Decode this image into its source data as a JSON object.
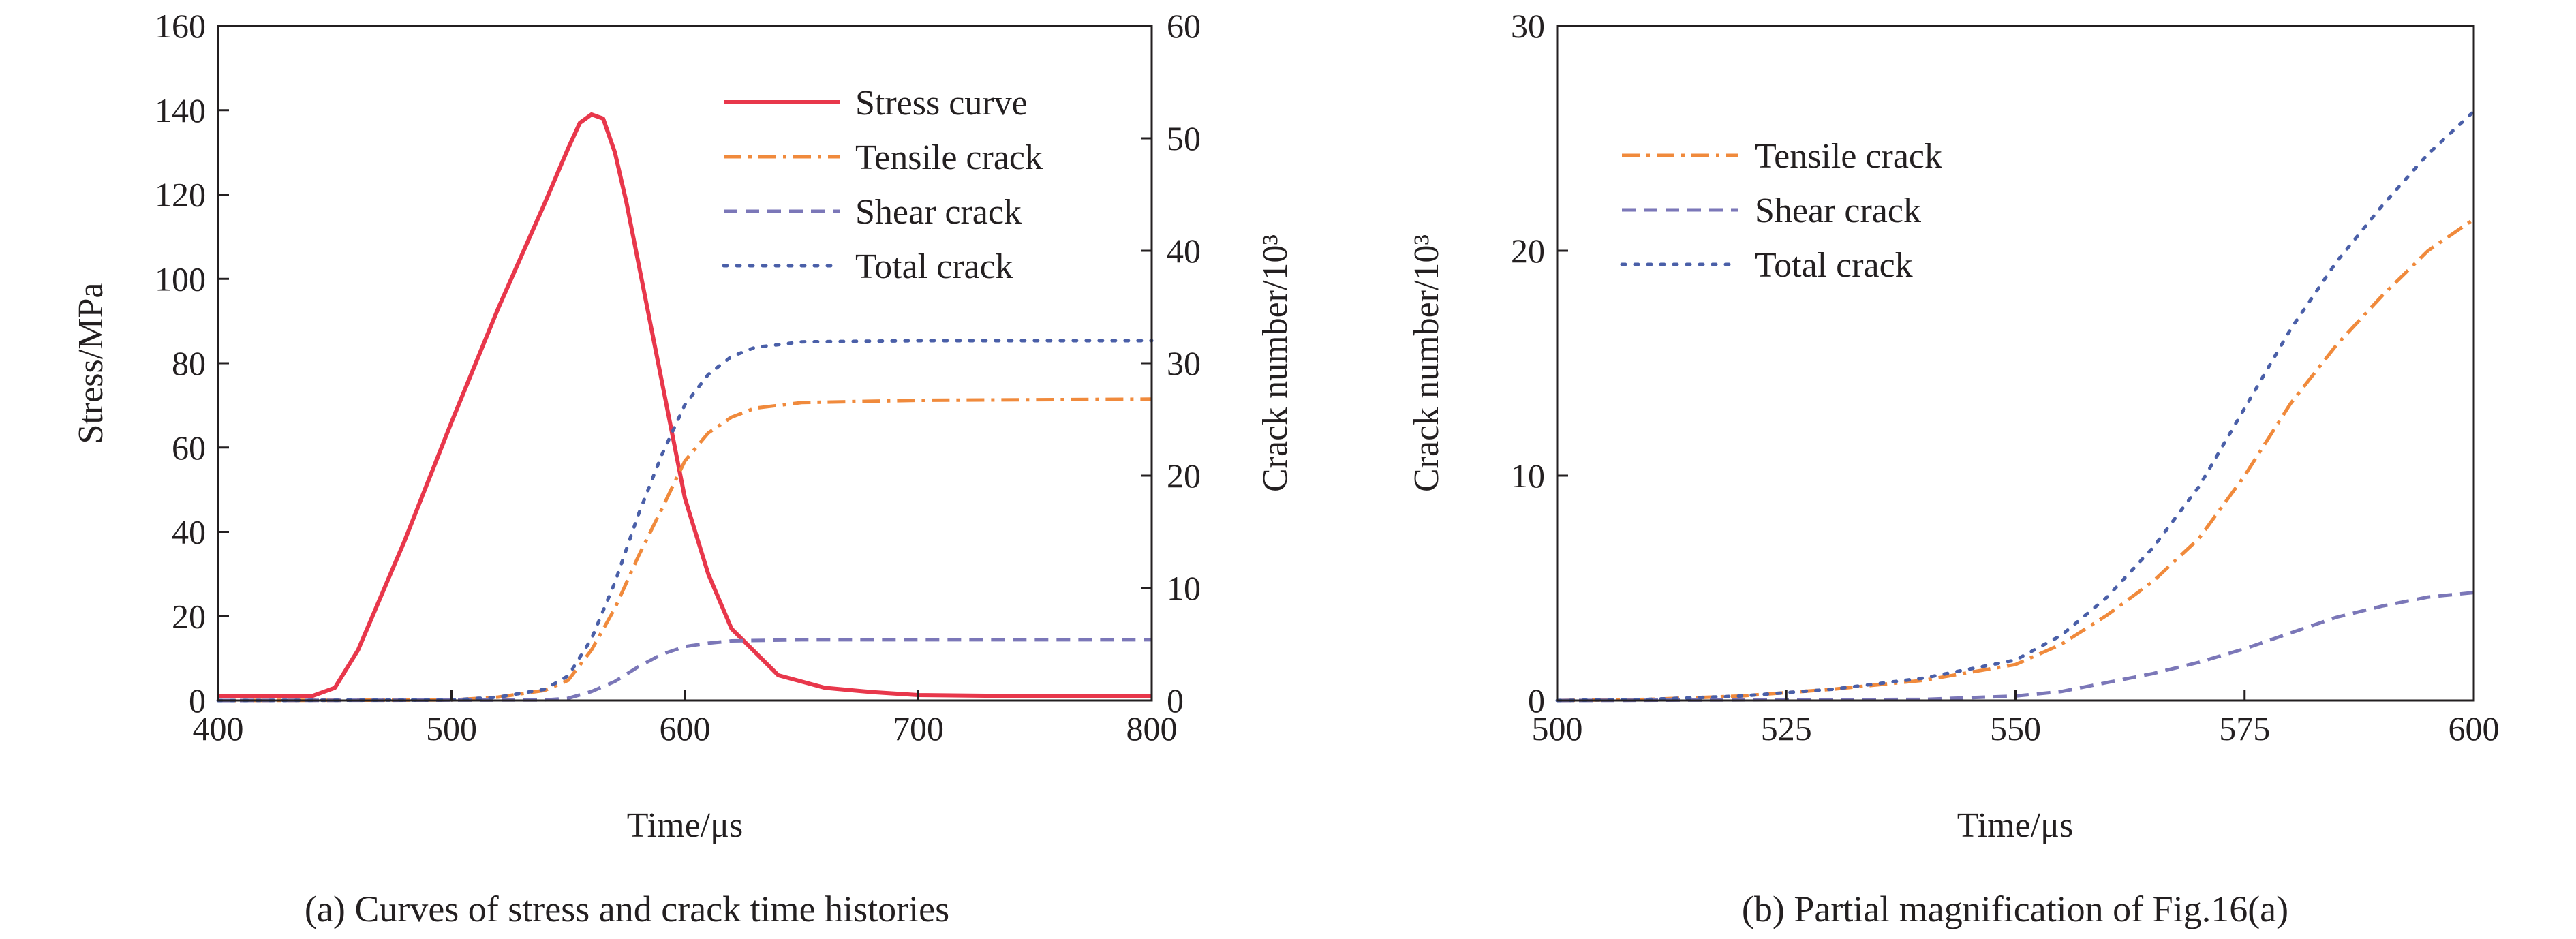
{
  "figure": {
    "panels": [
      "a",
      "b"
    ]
  },
  "chart_data": [
    {
      "id": "a",
      "type": "line",
      "caption": "(a) Curves of stress and crack time histories",
      "xlabel": "Time/μs",
      "ylabel": "Stress/MPa",
      "y2label": "Crack number/10³",
      "xlim": [
        400,
        800
      ],
      "ylim": [
        0,
        160
      ],
      "y2lim": [
        0,
        60
      ],
      "xticks": [
        400,
        500,
        600,
        700,
        800
      ],
      "yticks": [
        0,
        20,
        40,
        60,
        80,
        100,
        120,
        140,
        160
      ],
      "y2ticks": [
        0,
        10,
        20,
        30,
        40,
        50,
        60
      ],
      "grid": false,
      "legend_position": "top-right",
      "series": [
        {
          "name": "Stress curve",
          "axis": "left",
          "color": "#e8374b",
          "dash": "solid",
          "x": [
            400,
            440,
            450,
            460,
            480,
            500,
            520,
            540,
            550,
            555,
            560,
            565,
            570,
            575,
            580,
            590,
            600,
            610,
            620,
            640,
            660,
            680,
            700,
            750,
            800
          ],
          "y": [
            1,
            1,
            3,
            12,
            38,
            66,
            93,
            118,
            131,
            137,
            139,
            138,
            130,
            118,
            104,
            76,
            48,
            30,
            17,
            6,
            3,
            2,
            1.3,
            1,
            1
          ]
        },
        {
          "name": "Tensile crack",
          "axis": "right",
          "color": "#f08a3c",
          "dash": "dashdot",
          "x": [
            400,
            500,
            520,
            540,
            550,
            560,
            570,
            580,
            590,
            600,
            610,
            620,
            630,
            650,
            700,
            800
          ],
          "y": [
            0,
            0.05,
            0.3,
            0.9,
            1.8,
            4.5,
            8.2,
            12.8,
            17.0,
            21.3,
            23.8,
            25.2,
            26.0,
            26.5,
            26.7,
            26.8
          ]
        },
        {
          "name": "Shear crack",
          "axis": "right",
          "color": "#7b77b8",
          "dash": "dash",
          "x": [
            400,
            540,
            550,
            560,
            570,
            580,
            590,
            600,
            610,
            620,
            650,
            800
          ],
          "y": [
            0,
            0.05,
            0.2,
            0.8,
            1.7,
            3.0,
            4.1,
            4.8,
            5.1,
            5.3,
            5.4,
            5.4
          ]
        },
        {
          "name": "Total crack",
          "axis": "right",
          "color": "#4a5fa8",
          "dash": "dot",
          "x": [
            400,
            500,
            520,
            540,
            550,
            560,
            570,
            580,
            590,
            600,
            610,
            620,
            630,
            650,
            700,
            800
          ],
          "y": [
            0,
            0.05,
            0.3,
            1.0,
            2.2,
            5.5,
            10.5,
            16.5,
            21.8,
            26.3,
            29.0,
            30.6,
            31.4,
            31.9,
            32.0,
            32.0
          ]
        }
      ]
    },
    {
      "id": "b",
      "type": "line",
      "caption": "(b) Partial magnification of Fig.16(a)",
      "xlabel": "Time/μs",
      "ylabel": "Crack number/10³",
      "xlim": [
        500,
        600
      ],
      "ylim": [
        0,
        30
      ],
      "xticks": [
        500,
        525,
        550,
        575,
        600
      ],
      "yticks": [
        0,
        10,
        20,
        30
      ],
      "grid": false,
      "legend_position": "top-left",
      "series": [
        {
          "name": "Tensile crack",
          "color": "#f08a3c",
          "dash": "dashdot",
          "x": [
            500,
            510,
            520,
            530,
            540,
            550,
            555,
            560,
            565,
            570,
            575,
            580,
            585,
            590,
            595,
            600
          ],
          "y": [
            0,
            0.05,
            0.2,
            0.5,
            0.9,
            1.6,
            2.5,
            3.8,
            5.3,
            7.2,
            10.0,
            13.2,
            15.8,
            18.0,
            20.0,
            21.4
          ]
        },
        {
          "name": "Shear crack",
          "color": "#7b77b8",
          "dash": "dash",
          "x": [
            500,
            540,
            550,
            555,
            560,
            565,
            570,
            575,
            580,
            585,
            590,
            595,
            600
          ],
          "y": [
            0,
            0.05,
            0.2,
            0.4,
            0.8,
            1.2,
            1.7,
            2.3,
            3.0,
            3.7,
            4.2,
            4.6,
            4.8
          ]
        },
        {
          "name": "Total crack",
          "color": "#4a5fa8",
          "dash": "dot",
          "x": [
            500,
            510,
            520,
            530,
            540,
            550,
            555,
            560,
            565,
            570,
            575,
            580,
            585,
            590,
            595,
            600
          ],
          "y": [
            0,
            0.05,
            0.2,
            0.5,
            1.0,
            1.8,
            2.9,
            4.6,
            6.8,
            9.5,
            13.0,
            16.5,
            19.5,
            22.0,
            24.3,
            26.2
          ]
        }
      ]
    }
  ]
}
